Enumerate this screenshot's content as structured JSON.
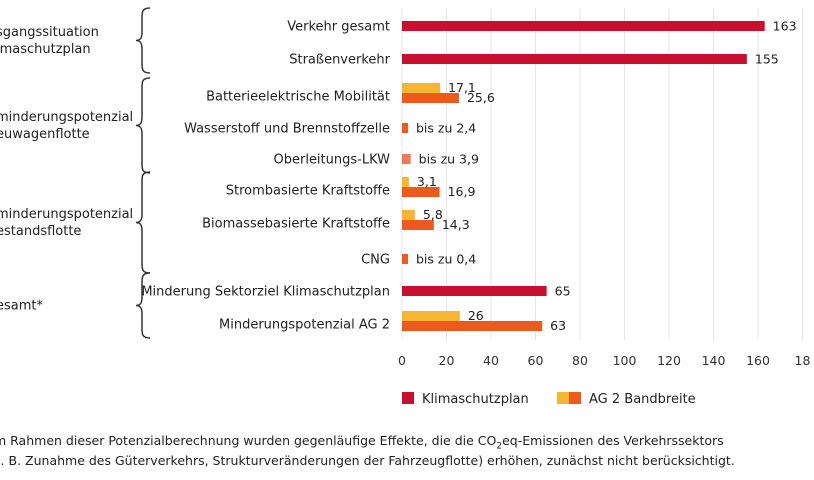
{
  "colors": {
    "klimaschutzplan": "#c8102e",
    "ag2_low": "#f5b731",
    "ag2_high": "#ec5a1c",
    "single_bar": "#ec5a1c",
    "oberleitung": "#ee7a55",
    "brace": "#333333",
    "grid": "#e4e4e4"
  },
  "chart_data": {
    "type": "bar",
    "orientation": "horizontal",
    "xlim": [
      0,
      180
    ],
    "xticks": [
      "0",
      "20",
      "40",
      "60",
      "80",
      "100",
      "120",
      "140",
      "160",
      "18"
    ],
    "grid": true,
    "legend_position": "bottom",
    "legend": [
      {
        "label": "Klimaschutzplan",
        "colors": [
          "#c8102e"
        ]
      },
      {
        "label": "AG 2 Bandbreite",
        "colors": [
          "#f5b731",
          "#ec5a1c"
        ]
      }
    ],
    "groups": [
      {
        "label_lines": [
          "sgangssituation",
          "imaschutzplan"
        ],
        "rows": [
          0,
          1
        ]
      },
      {
        "label_lines": [
          "minderungspotenzial",
          "euwagenflotte"
        ],
        "rows": [
          2,
          3,
          4
        ]
      },
      {
        "label_lines": [
          "minderungspotenzial",
          "estandsflotte"
        ],
        "rows": [
          5,
          6,
          7
        ]
      },
      {
        "label_lines": [
          "esamt*"
        ],
        "rows": [
          8,
          9
        ]
      }
    ],
    "rows": [
      {
        "category": "Verkehr gesamt",
        "bars": [
          {
            "value": 163,
            "label": "163",
            "color": "#c8102e"
          }
        ]
      },
      {
        "category": "Straßenverkehr",
        "bars": [
          {
            "value": 155,
            "label": "155",
            "color": "#c8102e"
          }
        ]
      },
      {
        "category": "Batterieelektrische Mobilität",
        "bars": [
          {
            "value": 17.1,
            "label": "17,1",
            "color": "#f5b731"
          },
          {
            "value": 25.6,
            "label": "25,6",
            "color": "#ec5a1c"
          }
        ]
      },
      {
        "category": "Wasserstoff und Brennstoffzelle",
        "bars": [
          {
            "value": 2.4,
            "label": "bis zu 2,4",
            "color": "#ec5a1c"
          }
        ]
      },
      {
        "category": "Oberleitungs-LKW",
        "bars": [
          {
            "value": 3.9,
            "label": "bis zu 3,9",
            "color": "#ee7a55"
          }
        ]
      },
      {
        "category": "Strombasierte Kraftstoffe",
        "bars": [
          {
            "value": 3.1,
            "label": "3,1",
            "color": "#f5b731"
          },
          {
            "value": 16.9,
            "label": "16,9",
            "color": "#ec5a1c"
          }
        ]
      },
      {
        "category": "Biomassebasierte Kraftstoffe",
        "bars": [
          {
            "value": 5.8,
            "label": "5,8",
            "color": "#f5b731"
          },
          {
            "value": 14.3,
            "label": "14,3",
            "color": "#ec5a1c"
          }
        ]
      },
      {
        "category": "CNG",
        "bars": [
          {
            "value": 0.4,
            "label": "bis zu 0,4",
            "color": "#ec5a1c"
          }
        ]
      },
      {
        "category": "Minderung Sektorziel Klimaschutzplan",
        "bars": [
          {
            "value": 65,
            "label": "65",
            "color": "#c8102e"
          }
        ]
      },
      {
        "category": "Minderungspotenzial AG 2",
        "bars": [
          {
            "value": 26,
            "label": "26",
            "color": "#f5b731"
          },
          {
            "value": 63,
            "label": "63",
            "color": "#ec5a1c"
          }
        ]
      }
    ]
  },
  "footnote": {
    "line1_pre": "m Rahmen dieser Potenzialberechnung wurden gegenläufige Effekte, die die CO",
    "line1_sub": "2",
    "line1_post": "eq-Emissionen des Verkehrssektors",
    "line2": "z. B. Zunahme des Güterverkehrs, Strukturveränderungen der Fahrzeugflotte) erhöhen, zunächst nicht berücksichtigt."
  }
}
